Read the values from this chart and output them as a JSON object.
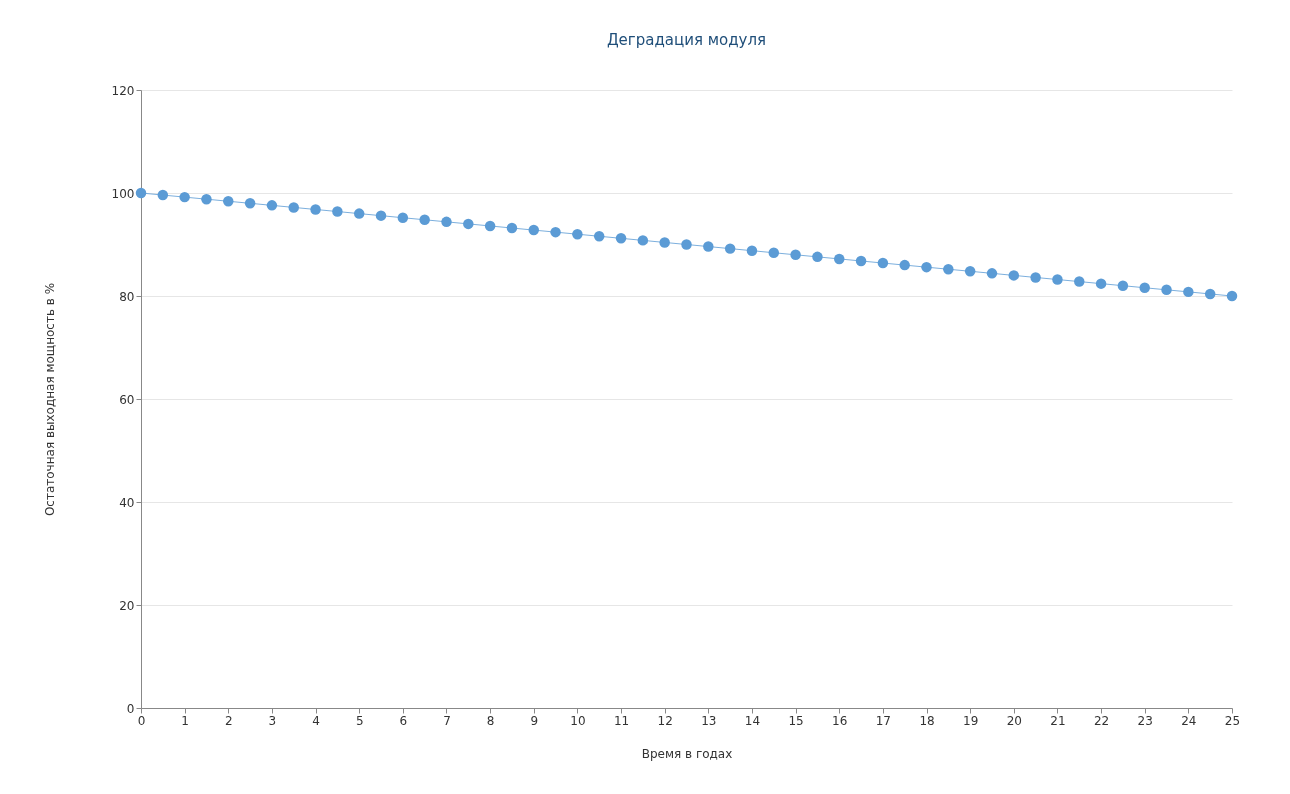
{
  "chart_data": {
    "type": "line",
    "title": "Деградация модуля",
    "xlabel": "Время в годах",
    "ylabel": "Остаточная выходная мощность в %",
    "x": [
      0,
      0.5,
      1,
      1.5,
      2,
      2.5,
      3,
      3.5,
      4,
      4.5,
      5,
      5.5,
      6,
      6.5,
      7,
      7.5,
      8,
      8.5,
      9,
      9.5,
      10,
      10.5,
      11,
      11.5,
      12,
      12.5,
      13,
      13.5,
      14,
      14.5,
      15,
      15.5,
      16,
      16.5,
      17,
      17.5,
      18,
      18.5,
      19,
      19.5,
      20,
      20.5,
      21,
      21.5,
      22,
      22.5,
      23,
      23.5,
      24,
      24.5,
      25
    ],
    "series": [
      {
        "color": "#5b9bd5",
        "values": [
          100,
          99.6,
          99.2,
          98.8,
          98.4,
          98,
          97.6,
          97.2,
          96.8,
          96.4,
          96,
          95.6,
          95.2,
          94.8,
          94.4,
          94,
          93.6,
          93.2,
          92.8,
          92.4,
          92,
          91.6,
          91.2,
          90.8,
          90.4,
          90,
          89.6,
          89.2,
          88.8,
          88.4,
          88,
          87.6,
          87.2,
          86.8,
          86.4,
          86,
          85.6,
          85.2,
          84.8,
          84.4,
          84,
          83.6,
          83.2,
          82.8,
          82.4,
          82,
          81.6,
          81.2,
          80.8,
          80.4,
          80
        ]
      }
    ],
    "xlim": [
      0,
      25
    ],
    "xticks": [
      0,
      1,
      2,
      3,
      4,
      5,
      6,
      7,
      8,
      9,
      10,
      11,
      12,
      13,
      14,
      15,
      16,
      17,
      18,
      19,
      20,
      21,
      22,
      23,
      24,
      25
    ],
    "ylim": [
      0,
      120
    ],
    "yticks": [
      0,
      20,
      40,
      60,
      80,
      100,
      120
    ],
    "grid": "y",
    "marker": "circle"
  }
}
